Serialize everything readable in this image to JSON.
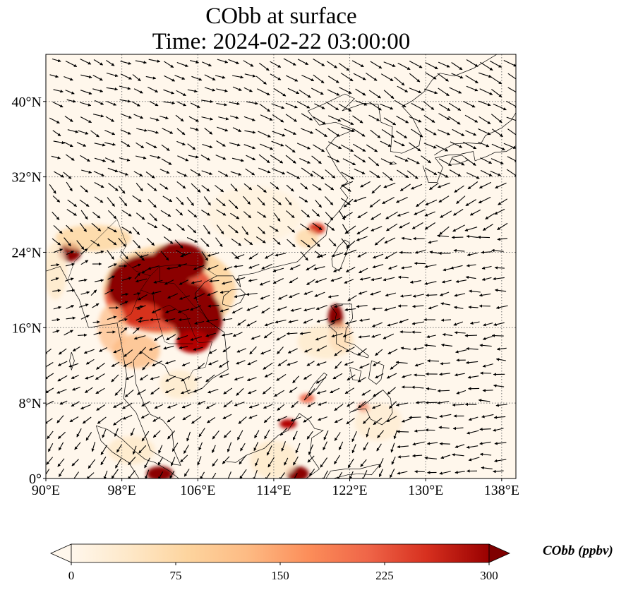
{
  "title": {
    "line1": "CObb at surface",
    "line2": "Time: 2024-02-22 03:00:00"
  },
  "map": {
    "lon_range": [
      90,
      139.5
    ],
    "lat_range": [
      0,
      45
    ],
    "lon_ticks": [
      {
        "value": 90,
        "label": "90°E"
      },
      {
        "value": 98,
        "label": "98°E"
      },
      {
        "value": 106,
        "label": "106°E"
      },
      {
        "value": 114,
        "label": "114°E"
      },
      {
        "value": 122,
        "label": "122°E"
      },
      {
        "value": 130,
        "label": "130°E"
      },
      {
        "value": 138,
        "label": "138°E"
      }
    ],
    "lat_ticks": [
      {
        "value": 0,
        "label": "0°"
      },
      {
        "value": 8,
        "label": "8°N"
      },
      {
        "value": 16,
        "label": "16°N"
      },
      {
        "value": 24,
        "label": "24°N"
      },
      {
        "value": 32,
        "label": "32°N"
      },
      {
        "value": 40,
        "label": "40°N"
      }
    ],
    "gridlines": true,
    "background_color": "#fff7ec",
    "coastline_color": "#000000"
  },
  "colorbar": {
    "label": "CObb (ppbv)",
    "min": 0,
    "max": 300,
    "ticks": [
      {
        "value": 0,
        "label": "0"
      },
      {
        "value": 75,
        "label": "75"
      },
      {
        "value": 150,
        "label": "150"
      },
      {
        "value": 225,
        "label": "225"
      },
      {
        "value": 300,
        "label": "300"
      }
    ],
    "colormap": "OrRd",
    "extend": "both"
  },
  "plumes": [
    {
      "region": "Indochina / Myanmar / S China",
      "lon": 103,
      "lat": 20,
      "value": 300
    },
    {
      "region": "Northeast India",
      "lon": 92.5,
      "lat": 24,
      "value": 280
    },
    {
      "region": "Luzon",
      "lon": 120.5,
      "lat": 17,
      "value": 300
    },
    {
      "region": "Borneo",
      "lon": 116.5,
      "lat": 0.5,
      "value": 300
    },
    {
      "region": "Sumatra",
      "lon": 102,
      "lat": 0.5,
      "value": 300
    },
    {
      "region": "Taiwan Strait coast",
      "lon": 118.5,
      "lat": 26.5,
      "value": 220
    },
    {
      "region": "Palawan",
      "lon": 116,
      "lat": 5.5,
      "value": 250
    }
  ]
}
